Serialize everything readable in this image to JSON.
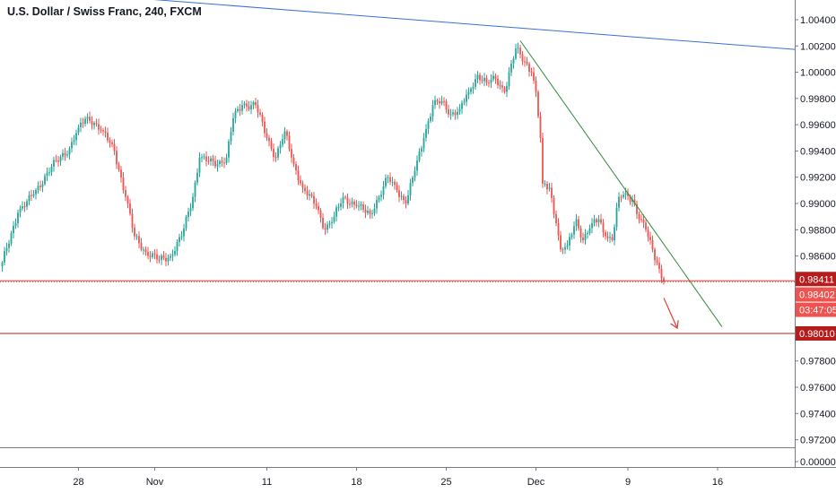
{
  "chart_data": {
    "type": "candlestick",
    "title": "U.S. Dollar / Swiss Franc, 240, FXCM",
    "symbol": "USDCHF",
    "timeframe": "240",
    "source": "FXCM",
    "y_axis": {
      "position": "right",
      "ylim": [
        0.9717,
        1.0055
      ],
      "tick_values": [
        1.004,
        1.002,
        1.0,
        0.998,
        0.996,
        0.994,
        0.992,
        0.99,
        0.988,
        0.986,
        0.984,
        0.982,
        0.98,
        0.978,
        0.976,
        0.974,
        0.972
      ],
      "tick_labels": [
        "1.00400",
        "1.00200",
        "1.00000",
        "0.99800",
        "0.99600",
        "0.99400",
        "0.99200",
        "0.99000",
        "0.98800",
        "0.98600",
        "",
        "",
        "",
        "0.97800",
        "0.97600",
        "0.97400",
        "0.97200"
      ]
    },
    "sub_axis": {
      "tick_values": [
        0
      ],
      "tick_labels": [
        "0.00000"
      ]
    },
    "x_axis": {
      "ticks": [
        {
          "label": "28",
          "bar": 34
        },
        {
          "label": "Nov",
          "bar": 68
        },
        {
          "label": "11",
          "bar": 118
        },
        {
          "label": "18",
          "bar": 158
        },
        {
          "label": "25",
          "bar": 198
        },
        {
          "label": "Dec",
          "bar": 238
        },
        {
          "label": "9",
          "bar": 279
        },
        {
          "label": "16",
          "bar": 319
        }
      ]
    },
    "anchors": [
      {
        "bar": 0,
        "price": 0.9855
      },
      {
        "bar": 7,
        "price": 0.9893
      },
      {
        "bar": 14,
        "price": 0.9907
      },
      {
        "bar": 22,
        "price": 0.9928
      },
      {
        "bar": 30,
        "price": 0.9942
      },
      {
        "bar": 34,
        "price": 0.9958
      },
      {
        "bar": 38,
        "price": 0.9966
      },
      {
        "bar": 45,
        "price": 0.9955
      },
      {
        "bar": 50,
        "price": 0.994
      },
      {
        "bar": 55,
        "price": 0.9905
      },
      {
        "bar": 59,
        "price": 0.9875
      },
      {
        "bar": 64,
        "price": 0.9863
      },
      {
        "bar": 70,
        "price": 0.9857
      },
      {
        "bar": 75,
        "price": 0.986
      },
      {
        "bar": 80,
        "price": 0.9875
      },
      {
        "bar": 85,
        "price": 0.9905
      },
      {
        "bar": 88,
        "price": 0.9935
      },
      {
        "bar": 92,
        "price": 0.9932
      },
      {
        "bar": 96,
        "price": 0.993
      },
      {
        "bar": 100,
        "price": 0.9935
      },
      {
        "bar": 103,
        "price": 0.9965
      },
      {
        "bar": 107,
        "price": 0.9975
      },
      {
        "bar": 113,
        "price": 0.9975
      },
      {
        "bar": 118,
        "price": 0.995
      },
      {
        "bar": 122,
        "price": 0.9935
      },
      {
        "bar": 126,
        "price": 0.9955
      },
      {
        "bar": 130,
        "price": 0.993
      },
      {
        "bar": 134,
        "price": 0.9912
      },
      {
        "bar": 140,
        "price": 0.9898
      },
      {
        "bar": 144,
        "price": 0.988
      },
      {
        "bar": 148,
        "price": 0.989
      },
      {
        "bar": 152,
        "price": 0.9905
      },
      {
        "bar": 158,
        "price": 0.9898
      },
      {
        "bar": 164,
        "price": 0.9892
      },
      {
        "bar": 168,
        "price": 0.9905
      },
      {
        "bar": 172,
        "price": 0.992
      },
      {
        "bar": 176,
        "price": 0.991
      },
      {
        "bar": 180,
        "price": 0.99
      },
      {
        "bar": 184,
        "price": 0.9925
      },
      {
        "bar": 188,
        "price": 0.995
      },
      {
        "bar": 192,
        "price": 0.9975
      },
      {
        "bar": 196,
        "price": 0.9978
      },
      {
        "bar": 200,
        "price": 0.9968
      },
      {
        "bar": 204,
        "price": 0.9972
      },
      {
        "bar": 208,
        "price": 0.9985
      },
      {
        "bar": 212,
        "price": 0.9998
      },
      {
        "bar": 216,
        "price": 0.9992
      },
      {
        "bar": 220,
        "price": 0.9995
      },
      {
        "bar": 224,
        "price": 0.9985
      },
      {
        "bar": 229,
        "price": 1.0018
      },
      {
        "bar": 233,
        "price": 1.0008
      },
      {
        "bar": 236,
        "price": 1.0
      },
      {
        "bar": 238,
        "price": 0.9985
      },
      {
        "bar": 240,
        "price": 0.995
      },
      {
        "bar": 241,
        "price": 0.9915
      },
      {
        "bar": 244,
        "price": 0.9912
      },
      {
        "bar": 247,
        "price": 0.9885
      },
      {
        "bar": 249,
        "price": 0.9865
      },
      {
        "bar": 252,
        "price": 0.9868
      },
      {
        "bar": 256,
        "price": 0.9888
      },
      {
        "bar": 259,
        "price": 0.9872
      },
      {
        "bar": 263,
        "price": 0.9885
      },
      {
        "bar": 266,
        "price": 0.9888
      },
      {
        "bar": 269,
        "price": 0.9875
      },
      {
        "bar": 272,
        "price": 0.9872
      },
      {
        "bar": 275,
        "price": 0.9905
      },
      {
        "bar": 278,
        "price": 0.9908
      },
      {
        "bar": 281,
        "price": 0.9903
      },
      {
        "bar": 284,
        "price": 0.9888
      },
      {
        "bar": 287,
        "price": 0.988
      },
      {
        "bar": 290,
        "price": 0.9865
      },
      {
        "bar": 292,
        "price": 0.9855
      },
      {
        "bar": 294,
        "price": 0.9843
      },
      {
        "bar": 295,
        "price": 0.98402
      }
    ],
    "horizontal_lines": [
      {
        "name": "resistance-level-line",
        "price": 0.98411,
        "color": "#e53935",
        "label": "0.98411"
      },
      {
        "name": "target-level-line",
        "price": 0.9801,
        "color": "#b71c1c",
        "label": "0.98010"
      }
    ],
    "trendlines": [
      {
        "name": "upper-trendline",
        "color": "#3a6fd8",
        "from": {
          "bar": 40,
          "price": 1.0059
        },
        "to": {
          "bar": 356,
          "price": 1.0017
        }
      },
      {
        "name": "falling-trendline",
        "color": "#2e8b3a",
        "from": {
          "bar": 231,
          "price": 1.0024
        },
        "to": {
          "bar": 321,
          "price": 0.9806
        }
      }
    ],
    "current_price": {
      "value": 0.98402,
      "label": "0.98402",
      "countdown": "03:47:05",
      "color": "#ef5350"
    },
    "arrow_annotation": {
      "color": "#e53935",
      "from": {
        "bar": 295,
        "price": 0.9828
      },
      "to": {
        "bar": 301,
        "price": 0.9805
      }
    },
    "colors": {
      "up": "#26a69a",
      "down": "#ef5350",
      "axis_text": "#131722",
      "axis_line": "#787b86"
    }
  }
}
